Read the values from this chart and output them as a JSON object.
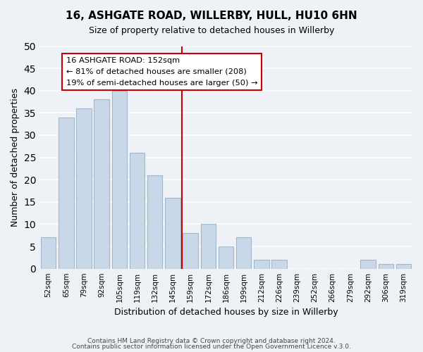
{
  "title": "16, ASHGATE ROAD, WILLERBY, HULL, HU10 6HN",
  "subtitle": "Size of property relative to detached houses in Willerby",
  "xlabel": "Distribution of detached houses by size in Willerby",
  "ylabel": "Number of detached properties",
  "bar_labels": [
    "52sqm",
    "65sqm",
    "79sqm",
    "92sqm",
    "105sqm",
    "119sqm",
    "132sqm",
    "145sqm",
    "159sqm",
    "172sqm",
    "186sqm",
    "199sqm",
    "212sqm",
    "226sqm",
    "239sqm",
    "252sqm",
    "266sqm",
    "279sqm",
    "292sqm",
    "306sqm",
    "319sqm"
  ],
  "bar_values": [
    7,
    34,
    36,
    38,
    40,
    26,
    21,
    16,
    8,
    10,
    5,
    7,
    2,
    2,
    0,
    0,
    0,
    0,
    2,
    1,
    1
  ],
  "bar_color": "#c8d8e8",
  "bar_edge_color": "#a0b8cc",
  "vline_x": 7.5,
  "vline_color": "#cc0000",
  "annotation_title": "16 ASHGATE ROAD: 152sqm",
  "annotation_line1": "← 81% of detached houses are smaller (208)",
  "annotation_line2": "19% of semi-detached houses are larger (50) →",
  "annotation_box_color": "#ffffff",
  "annotation_box_edge": "#cc0000",
  "ylim": [
    0,
    50
  ],
  "yticks": [
    0,
    5,
    10,
    15,
    20,
    25,
    30,
    35,
    40,
    45,
    50
  ],
  "footer1": "Contains HM Land Registry data © Crown copyright and database right 2024.",
  "footer2": "Contains public sector information licensed under the Open Government Licence v.3.0.",
  "bg_color": "#eef2f7",
  "grid_color": "#ffffff"
}
